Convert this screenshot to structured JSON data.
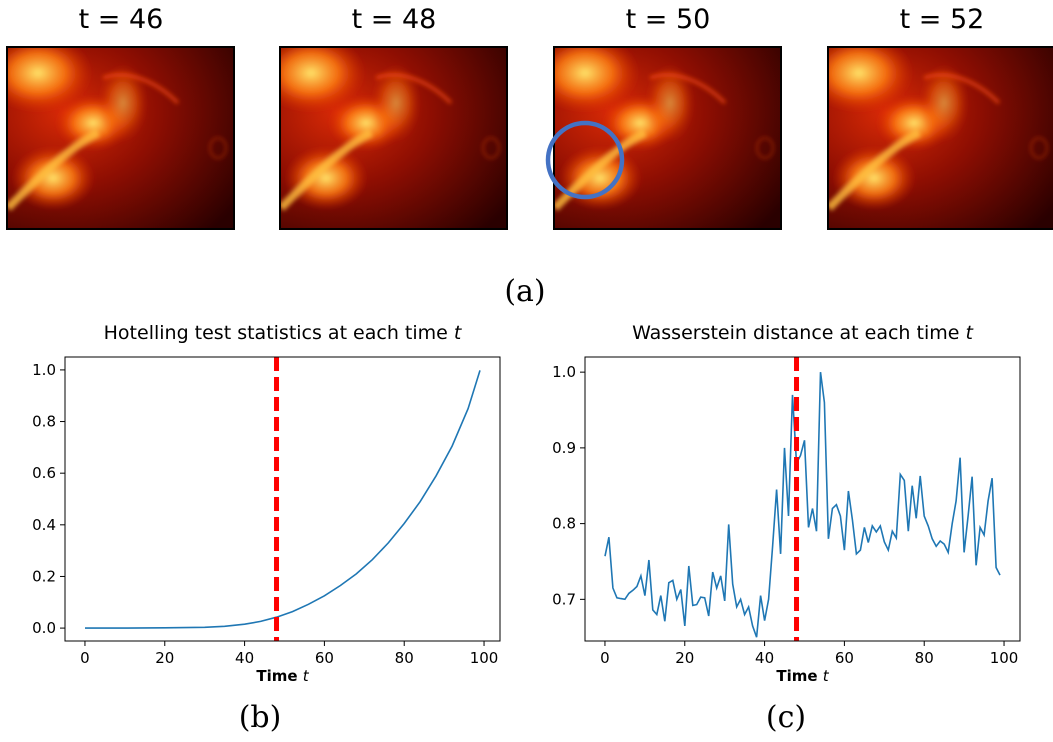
{
  "panels": {
    "a": {
      "label": "(a)",
      "frames": [
        {
          "title": "t = 46",
          "highlighted": false
        },
        {
          "title": "t = 48",
          "highlighted": false
        },
        {
          "title": "t = 50",
          "highlighted": true
        },
        {
          "title": "t = 52",
          "highlighted": false
        }
      ],
      "highlight_color": "#4472c4"
    },
    "b_label": "(b)",
    "c_label": "(c)"
  },
  "colors": {
    "series": "#1f77b4",
    "changepoint": "#ff0000"
  },
  "chart_data": [
    {
      "type": "line",
      "title_prefix": "Hotelling test statistics at each time ",
      "title_var": "t",
      "xlabel_bold": "Time",
      "xlabel_var": "t",
      "ylabel": "",
      "xlim": [
        -5,
        104
      ],
      "ylim": [
        -0.05,
        1.05
      ],
      "xticks": [
        0,
        20,
        40,
        60,
        80,
        100
      ],
      "yticks": [
        0.0,
        0.2,
        0.4,
        0.6,
        0.8,
        1.0
      ],
      "ytick_labels": [
        "0.0",
        "0.2",
        "0.4",
        "0.6",
        "0.8",
        "1.0"
      ],
      "changepoint_x": 48,
      "series": [
        {
          "x": [
            0,
            10,
            20,
            30,
            35,
            40,
            44,
            48,
            52,
            56,
            60,
            64,
            68,
            72,
            76,
            80,
            84,
            88,
            92,
            96,
            99
          ],
          "values": [
            0,
            0,
            0.001,
            0.003,
            0.007,
            0.015,
            0.026,
            0.042,
            0.064,
            0.092,
            0.125,
            0.165,
            0.21,
            0.265,
            0.33,
            0.405,
            0.49,
            0.59,
            0.705,
            0.85,
            0.998
          ]
        }
      ]
    },
    {
      "type": "line",
      "title_prefix": "Wasserstein distance at each time ",
      "title_var": "t",
      "xlabel_bold": "Time",
      "xlabel_var": "t",
      "ylabel": "",
      "xlim": [
        -5,
        104
      ],
      "ylim": [
        0.645,
        1.02
      ],
      "xticks": [
        0,
        20,
        40,
        60,
        80,
        100
      ],
      "yticks": [
        0.7,
        0.8,
        0.9,
        1.0
      ],
      "ytick_labels": [
        "0.7",
        "0.8",
        "0.9",
        "1.0"
      ],
      "changepoint_x": 48,
      "series": [
        {
          "x": [
            0,
            1,
            2,
            3,
            4,
            5,
            6,
            7,
            8,
            9,
            10,
            11,
            12,
            13,
            14,
            15,
            16,
            17,
            18,
            19,
            20,
            21,
            22,
            23,
            24,
            25,
            26,
            27,
            28,
            29,
            30,
            31,
            32,
            33,
            34,
            35,
            36,
            37,
            38,
            39,
            40,
            41,
            42,
            43,
            44,
            45,
            46,
            47,
            48,
            49,
            50,
            51,
            52,
            53,
            54,
            55,
            56,
            57,
            58,
            59,
            60,
            61,
            62,
            63,
            64,
            65,
            66,
            67,
            68,
            69,
            70,
            71,
            72,
            73,
            74,
            75,
            76,
            77,
            78,
            79,
            80,
            81,
            82,
            83,
            84,
            85,
            86,
            87,
            88,
            89,
            90,
            91,
            92,
            93,
            94,
            95,
            96,
            97,
            98,
            99
          ],
          "values": [
            0.757,
            0.782,
            0.715,
            0.702,
            0.701,
            0.7,
            0.708,
            0.712,
            0.717,
            0.731,
            0.705,
            0.752,
            0.686,
            0.68,
            0.705,
            0.671,
            0.722,
            0.725,
            0.7,
            0.713,
            0.665,
            0.744,
            0.692,
            0.693,
            0.703,
            0.702,
            0.678,
            0.736,
            0.715,
            0.731,
            0.698,
            0.799,
            0.72,
            0.69,
            0.7,
            0.68,
            0.69,
            0.665,
            0.65,
            0.705,
            0.672,
            0.7,
            0.77,
            0.845,
            0.76,
            0.9,
            0.81,
            0.97,
            0.88,
            0.89,
            0.91,
            0.795,
            0.82,
            0.79,
            1.0,
            0.96,
            0.78,
            0.82,
            0.825,
            0.81,
            0.765,
            0.843,
            0.805,
            0.76,
            0.765,
            0.795,
            0.775,
            0.797,
            0.789,
            0.797,
            0.776,
            0.765,
            0.79,
            0.781,
            0.865,
            0.857,
            0.79,
            0.85,
            0.807,
            0.863,
            0.81,
            0.797,
            0.78,
            0.77,
            0.777,
            0.773,
            0.762,
            0.8,
            0.83,
            0.887,
            0.762,
            0.81,
            0.862,
            0.745,
            0.795,
            0.785,
            0.83,
            0.86,
            0.742,
            0.732
          ]
        }
      ]
    }
  ]
}
